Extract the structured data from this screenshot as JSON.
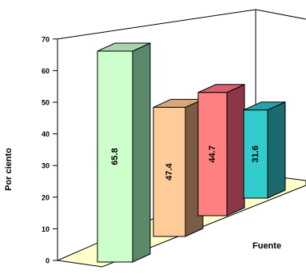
{
  "chart_data": {
    "type": "bar",
    "categories": [
      "",
      "",
      "",
      ""
    ],
    "values": [
      65.8,
      47.4,
      44.7,
      31.6
    ],
    "value_labels": [
      "65.8",
      "47.4",
      "44.7",
      "31.6"
    ],
    "ylabel": "Por ciento",
    "xlabel": "Fuente",
    "ylim": [
      0,
      70
    ],
    "yticks": [
      "0",
      "10",
      "20",
      "30",
      "40",
      "50",
      "60",
      "70"
    ],
    "grid": false,
    "legend": "none",
    "colors": [
      {
        "front": "#ccffcc",
        "side": "#5a8a6a",
        "top": "#a8d5b0"
      },
      {
        "front": "#ffcc99",
        "side": "#7a5c44",
        "top": "#d9a878"
      },
      {
        "front": "#ff8080",
        "side": "#8a3848",
        "top": "#d86070"
      },
      {
        "front": "#33cccc",
        "side": "#1a6a70",
        "top": "#26a3a8"
      }
    ],
    "floor_color": "#ffffcc"
  }
}
